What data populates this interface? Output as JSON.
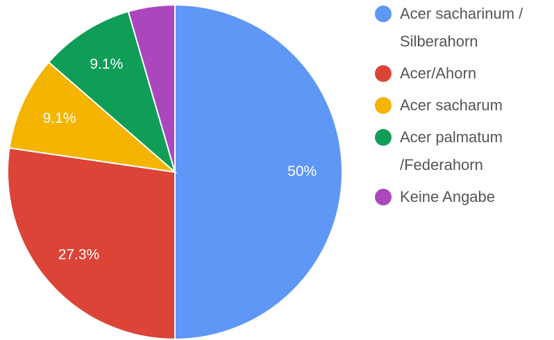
{
  "chart_data": {
    "type": "pie",
    "categories": [
      "Acer sacharinum / Silberahorn",
      "Acer/Ahorn",
      "Acer sacharum",
      "Acer palmatum /Federahorn",
      "Keine Angabe"
    ],
    "values": [
      50,
      27.3,
      9.1,
      9.1,
      4.5
    ],
    "value_labels": [
      "50%",
      "27.3%",
      "9.1%",
      "9.1%",
      null
    ],
    "colors": [
      "#5e97f6",
      "#db4437",
      "#f4b400",
      "#0f9d58",
      "#ab47bc"
    ],
    "legend": "right"
  }
}
